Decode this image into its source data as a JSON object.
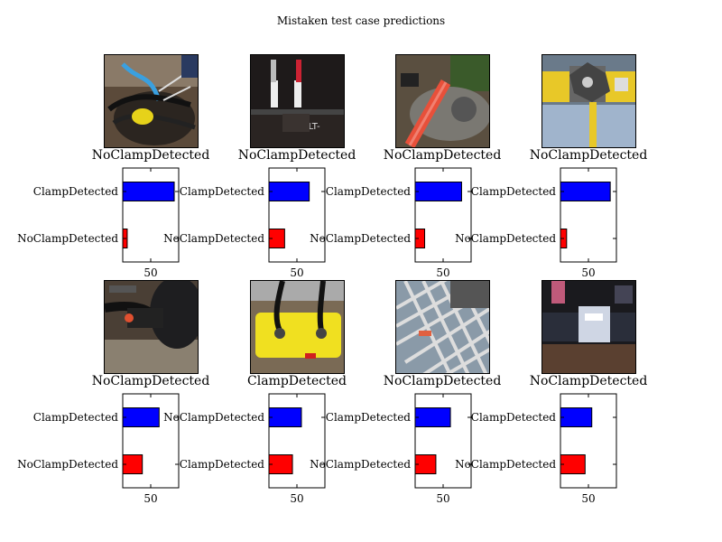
{
  "chart_data": {
    "type": "bar",
    "title": "Mistaken test case predictions",
    "panels": [
      {
        "label": "NoClampDetected",
        "photo": "excavation with cables and yellow clamp",
        "categories": [
          "ClampDetected",
          "NoClampDetected"
        ],
        "values": [
          92,
          8
        ],
        "colors": [
          "#0000ff",
          "#ff0000"
        ],
        "xtick": 50,
        "xlim": [
          0,
          100
        ]
      },
      {
        "label": "NoClampDetected",
        "photo": "pipe fitting with white connectors",
        "categories": [
          "ClampDetected",
          "NoClampDetected"
        ],
        "values": [
          72,
          28
        ],
        "colors": [
          "#0000ff",
          "#ff0000"
        ],
        "xtick": 50,
        "xlim": [
          0,
          100
        ]
      },
      {
        "label": "NoClampDetected",
        "photo": "orange cable on grey fitting",
        "categories": [
          "ClampDetected",
          "NoClampDetected"
        ],
        "values": [
          83,
          17
        ],
        "colors": [
          "#0000ff",
          "#ff0000"
        ],
        "xtick": 50,
        "xlim": [
          0,
          100
        ]
      },
      {
        "label": "NoClampDetected",
        "photo": "yellow pipe with metal tapping tee",
        "categories": [
          "ClampDetected",
          "NoClampDetected"
        ],
        "values": [
          89,
          11
        ],
        "colors": [
          "#0000ff",
          "#ff0000"
        ],
        "xtick": 50,
        "xlim": [
          0,
          100
        ]
      },
      {
        "label": "NoClampDetected",
        "photo": "black pipe with cable connector",
        "categories": [
          "ClampDetected",
          "NoClampDetected"
        ],
        "values": [
          65,
          35
        ],
        "colors": [
          "#0000ff",
          "#ff0000"
        ],
        "xtick": 50,
        "xlim": [
          0,
          100
        ]
      },
      {
        "label": "ClampDetected",
        "photo": "yellow clamp with black cables",
        "categories": [
          "NoClampDetected",
          "ClampDetected"
        ],
        "values": [
          58,
          42
        ],
        "colors": [
          "#0000ff",
          "#ff0000"
        ],
        "xtick": 50,
        "xlim": [
          0,
          100
        ]
      },
      {
        "label": "NoClampDetected",
        "photo": "metal grating over pipe",
        "categories": [
          "ClampDetected",
          "NoClampDetected"
        ],
        "values": [
          63,
          37
        ],
        "colors": [
          "#0000ff",
          "#ff0000"
        ],
        "xtick": 50,
        "xlim": [
          0,
          100
        ]
      },
      {
        "label": "NoClampDetected",
        "photo": "dark pipe with white marking in trench",
        "categories": [
          "ClampDetected",
          "NoClampDetected"
        ],
        "values": [
          56,
          44
        ],
        "colors": [
          "#0000ff",
          "#ff0000"
        ],
        "xtick": 50,
        "xlim": [
          0,
          100
        ]
      }
    ]
  }
}
